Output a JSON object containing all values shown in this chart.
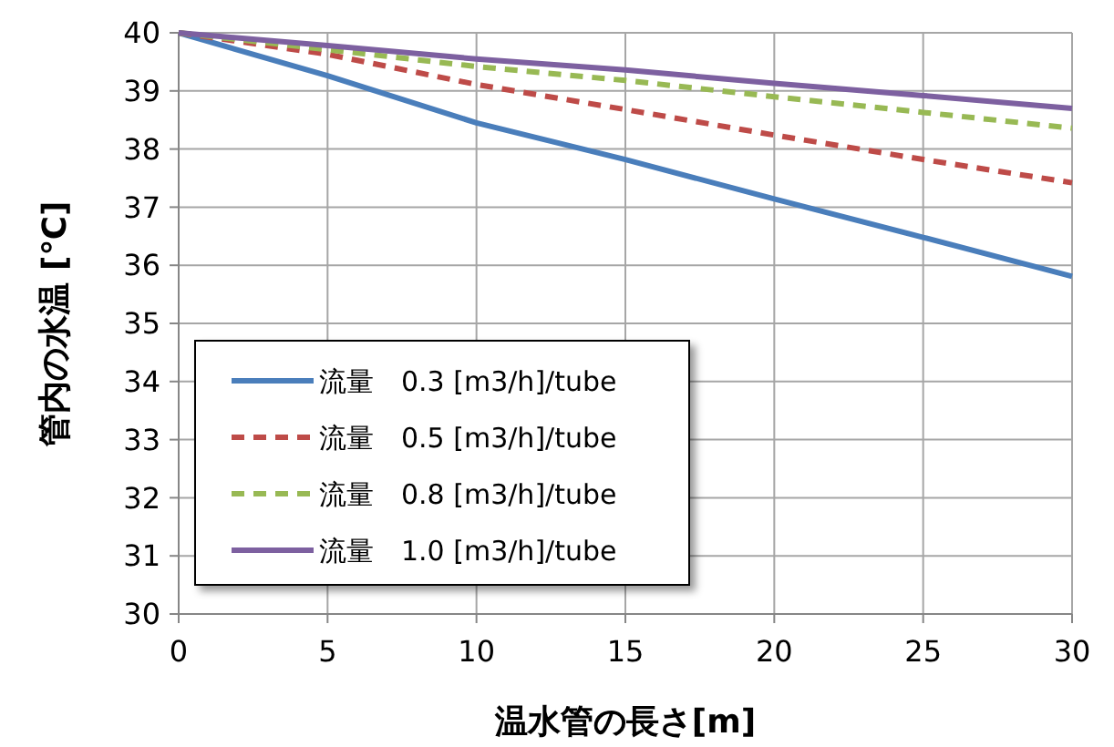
{
  "chart_data": {
    "type": "line",
    "xlabel": "温水管の長さ[m]",
    "ylabel": "管内の水温 [℃]",
    "x": [
      0,
      5,
      10,
      15,
      20,
      25,
      30
    ],
    "series": [
      {
        "name": "流量　0.3 [m3/h]/tube",
        "color": "#4a7ebb",
        "line_style": "solid",
        "values": [
          40,
          39.26,
          38.45,
          37.82,
          37.14,
          36.48,
          35.81
        ]
      },
      {
        "name": "流量　0.5 [m3/h]/tube",
        "color": "#be4b48",
        "line_style": "dashed",
        "values": [
          40,
          39.63,
          39.11,
          38.68,
          38.24,
          37.82,
          37.42
        ]
      },
      {
        "name": "流量　0.8 [m3/h]/tube",
        "color": "#98b954",
        "line_style": "dashed",
        "values": [
          40,
          39.71,
          39.42,
          39.18,
          38.9,
          38.63,
          38.36
        ]
      },
      {
        "name": "流量　1.0 [m3/h]/tube",
        "color": "#7d60a0",
        "line_style": "solid",
        "values": [
          40,
          39.78,
          39.55,
          39.36,
          39.13,
          38.92,
          38.7
        ]
      }
    ],
    "xlim": [
      0,
      30
    ],
    "xticks": [
      0,
      5,
      10,
      15,
      20,
      25,
      30
    ],
    "ylim": [
      30,
      40
    ],
    "yticks": [
      30,
      31,
      32,
      33,
      34,
      35,
      36,
      37,
      38,
      39,
      40
    ],
    "grid": true,
    "legend": "bottom left"
  }
}
